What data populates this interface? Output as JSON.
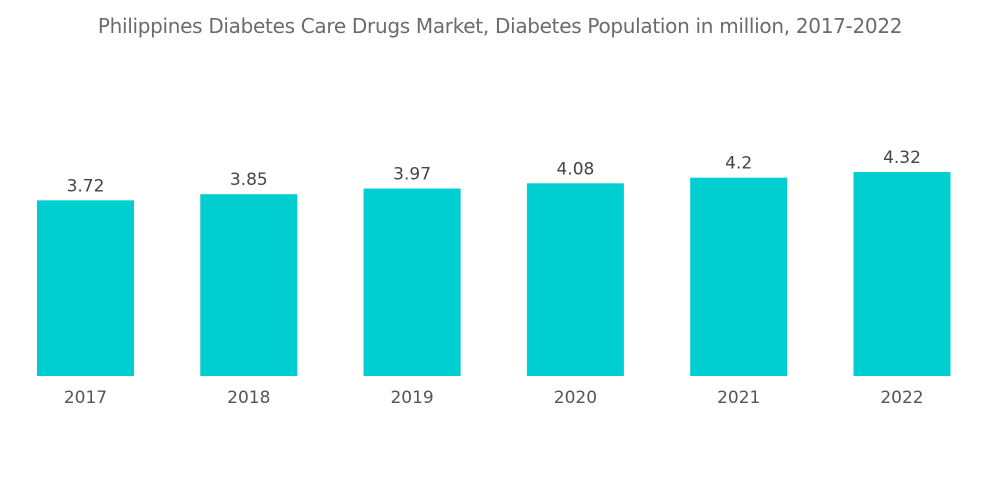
{
  "chart_data": {
    "type": "bar",
    "title": "Philippines Diabetes Care Drugs Market, Diabetes Population in million, 2017-2022",
    "xlabel": "",
    "ylabel": "",
    "categories": [
      "2017",
      "2018",
      "2019",
      "2020",
      "2021",
      "2022"
    ],
    "values": [
      3.72,
      3.85,
      3.97,
      4.08,
      4.2,
      4.32
    ],
    "value_labels": [
      "3.72",
      "3.85",
      "3.97",
      "4.08",
      "4.2",
      "4.32"
    ],
    "ylim": [
      0,
      4.32
    ],
    "grid": false,
    "legend": "none",
    "colors": {
      "bar": "#00ced1"
    }
  }
}
